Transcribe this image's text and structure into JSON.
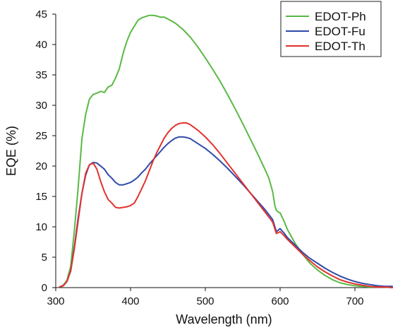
{
  "colors": {
    "EDOT-Ph": "#59b943",
    "EDOT-Fu": "#2f4aa8",
    "EDOT-Th": "#e2322f"
  },
  "chart_data": {
    "type": "line",
    "title": "",
    "xlabel": "Wavelength (nm)",
    "ylabel": "EQE (%)",
    "xlim": [
      300,
      750
    ],
    "ylim": [
      0,
      45
    ],
    "grid": false,
    "legend_position": "top-right",
    "x_ticks": [
      300,
      400,
      500,
      600,
      700
    ],
    "y_ticks": [
      0,
      5,
      10,
      15,
      20,
      25,
      30,
      35,
      40,
      45
    ],
    "series": [
      {
        "name": "EDOT-Ph",
        "color": "#59b943",
        "points": [
          [
            305,
            0.1
          ],
          [
            310,
            0.4
          ],
          [
            315,
            1.2
          ],
          [
            320,
            3.5
          ],
          [
            325,
            9.5
          ],
          [
            330,
            16.5
          ],
          [
            335,
            24.5
          ],
          [
            340,
            28.5
          ],
          [
            345,
            31.0
          ],
          [
            350,
            31.8
          ],
          [
            355,
            32.0
          ],
          [
            360,
            32.3
          ],
          [
            365,
            32.1
          ],
          [
            370,
            33.0
          ],
          [
            375,
            33.3
          ],
          [
            380,
            34.5
          ],
          [
            385,
            36.0
          ],
          [
            390,
            38.5
          ],
          [
            395,
            40.5
          ],
          [
            400,
            42.0
          ],
          [
            405,
            43.0
          ],
          [
            410,
            44.0
          ],
          [
            415,
            44.4
          ],
          [
            420,
            44.6
          ],
          [
            425,
            44.8
          ],
          [
            430,
            44.8
          ],
          [
            435,
            44.7
          ],
          [
            440,
            44.5
          ],
          [
            445,
            44.5
          ],
          [
            450,
            44.2
          ],
          [
            460,
            43.5
          ],
          [
            470,
            42.5
          ],
          [
            480,
            41.2
          ],
          [
            490,
            39.6
          ],
          [
            500,
            37.8
          ],
          [
            510,
            35.9
          ],
          [
            520,
            33.9
          ],
          [
            530,
            31.7
          ],
          [
            540,
            29.4
          ],
          [
            550,
            27.0
          ],
          [
            560,
            24.5
          ],
          [
            570,
            22.0
          ],
          [
            580,
            19.4
          ],
          [
            585,
            18.0
          ],
          [
            590,
            15.8
          ],
          [
            593,
            13.5
          ],
          [
            595,
            12.7
          ],
          [
            598,
            12.4
          ],
          [
            600,
            12.3
          ],
          [
            605,
            11.0
          ],
          [
            610,
            9.5
          ],
          [
            620,
            7.3
          ],
          [
            630,
            5.5
          ],
          [
            640,
            4.0
          ],
          [
            650,
            2.9
          ],
          [
            660,
            2.0
          ],
          [
            670,
            1.3
          ],
          [
            680,
            0.8
          ],
          [
            690,
            0.5
          ],
          [
            700,
            0.3
          ],
          [
            710,
            0.2
          ],
          [
            720,
            0.1
          ],
          [
            730,
            0.1
          ],
          [
            740,
            0.1
          ],
          [
            750,
            0.0
          ]
        ]
      },
      {
        "name": "EDOT-Fu",
        "color": "#2f4aa8",
        "points": [
          [
            305,
            0.1
          ],
          [
            310,
            0.3
          ],
          [
            315,
            1.0
          ],
          [
            320,
            2.8
          ],
          [
            325,
            6.8
          ],
          [
            330,
            11.5
          ],
          [
            335,
            15.5
          ],
          [
            340,
            18.5
          ],
          [
            345,
            20.2
          ],
          [
            350,
            20.6
          ],
          [
            355,
            20.5
          ],
          [
            360,
            20.0
          ],
          [
            365,
            19.5
          ],
          [
            370,
            18.6
          ],
          [
            375,
            18.0
          ],
          [
            380,
            17.3
          ],
          [
            385,
            16.9
          ],
          [
            390,
            16.9
          ],
          [
            395,
            17.1
          ],
          [
            400,
            17.3
          ],
          [
            405,
            17.7
          ],
          [
            410,
            18.2
          ],
          [
            415,
            18.9
          ],
          [
            420,
            19.5
          ],
          [
            425,
            20.3
          ],
          [
            430,
            21.0
          ],
          [
            435,
            21.7
          ],
          [
            440,
            22.4
          ],
          [
            445,
            23.1
          ],
          [
            450,
            23.7
          ],
          [
            455,
            24.2
          ],
          [
            460,
            24.6
          ],
          [
            465,
            24.8
          ],
          [
            470,
            24.8
          ],
          [
            475,
            24.7
          ],
          [
            480,
            24.5
          ],
          [
            490,
            23.7
          ],
          [
            500,
            22.9
          ],
          [
            510,
            21.9
          ],
          [
            520,
            20.8
          ],
          [
            530,
            19.6
          ],
          [
            540,
            18.3
          ],
          [
            550,
            17.0
          ],
          [
            560,
            15.6
          ],
          [
            570,
            14.2
          ],
          [
            580,
            12.8
          ],
          [
            590,
            11.2
          ],
          [
            595,
            9.2
          ],
          [
            600,
            9.7
          ],
          [
            605,
            9.0
          ],
          [
            610,
            8.2
          ],
          [
            620,
            7.0
          ],
          [
            630,
            5.8
          ],
          [
            640,
            4.8
          ],
          [
            650,
            4.0
          ],
          [
            660,
            3.2
          ],
          [
            670,
            2.5
          ],
          [
            680,
            1.9
          ],
          [
            690,
            1.4
          ],
          [
            700,
            1.0
          ],
          [
            710,
            0.7
          ],
          [
            720,
            0.5
          ],
          [
            730,
            0.3
          ],
          [
            740,
            0.2
          ],
          [
            750,
            0.2
          ]
        ]
      },
      {
        "name": "EDOT-Th",
        "color": "#e2322f",
        "points": [
          [
            305,
            0.1
          ],
          [
            310,
            0.3
          ],
          [
            315,
            1.0
          ],
          [
            320,
            2.7
          ],
          [
            325,
            6.5
          ],
          [
            330,
            11.0
          ],
          [
            335,
            15.5
          ],
          [
            340,
            18.8
          ],
          [
            345,
            20.2
          ],
          [
            350,
            20.5
          ],
          [
            355,
            19.5
          ],
          [
            360,
            17.5
          ],
          [
            365,
            15.8
          ],
          [
            370,
            14.5
          ],
          [
            375,
            13.9
          ],
          [
            380,
            13.2
          ],
          [
            385,
            13.1
          ],
          [
            390,
            13.2
          ],
          [
            395,
            13.3
          ],
          [
            400,
            13.5
          ],
          [
            405,
            13.9
          ],
          [
            410,
            15.0
          ],
          [
            415,
            16.3
          ],
          [
            420,
            17.6
          ],
          [
            425,
            19.2
          ],
          [
            430,
            20.8
          ],
          [
            435,
            22.2
          ],
          [
            440,
            23.4
          ],
          [
            445,
            24.6
          ],
          [
            450,
            25.5
          ],
          [
            455,
            26.2
          ],
          [
            460,
            26.7
          ],
          [
            465,
            27.0
          ],
          [
            470,
            27.1
          ],
          [
            475,
            27.1
          ],
          [
            480,
            26.8
          ],
          [
            490,
            25.9
          ],
          [
            500,
            24.8
          ],
          [
            510,
            23.5
          ],
          [
            520,
            22.0
          ],
          [
            530,
            20.4
          ],
          [
            540,
            18.8
          ],
          [
            550,
            17.2
          ],
          [
            560,
            15.6
          ],
          [
            570,
            14.0
          ],
          [
            580,
            12.4
          ],
          [
            590,
            10.8
          ],
          [
            595,
            8.9
          ],
          [
            600,
            9.2
          ],
          [
            605,
            8.6
          ],
          [
            610,
            7.9
          ],
          [
            620,
            6.7
          ],
          [
            630,
            5.5
          ],
          [
            640,
            4.4
          ],
          [
            650,
            3.4
          ],
          [
            660,
            2.6
          ],
          [
            670,
            1.9
          ],
          [
            680,
            1.3
          ],
          [
            690,
            0.9
          ],
          [
            700,
            0.6
          ],
          [
            710,
            0.4
          ],
          [
            720,
            0.2
          ],
          [
            730,
            0.1
          ],
          [
            740,
            0.1
          ],
          [
            750,
            0.0
          ]
        ]
      }
    ]
  }
}
